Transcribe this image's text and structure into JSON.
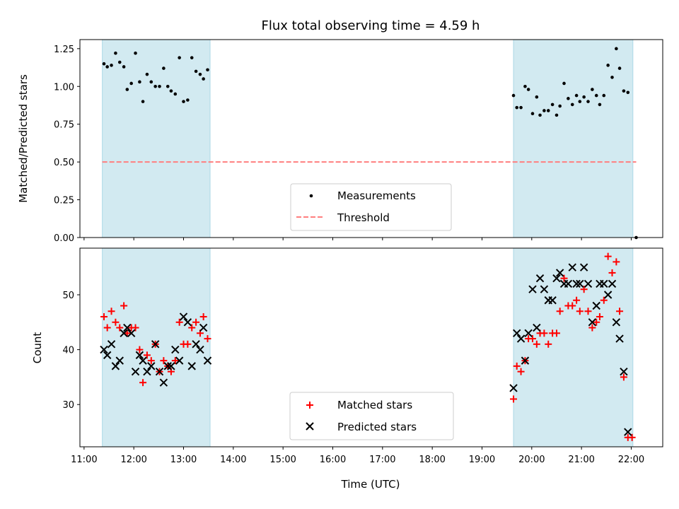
{
  "chart_data": {
    "type": "scatter",
    "title": "Flux total observing time = 4.59 h",
    "colors": {
      "measurements": "#000000",
      "threshold": "#ff7f7f",
      "matched": "#ff0000",
      "predicted": "#000000",
      "band": "#add8e6"
    },
    "xlabel": "Time (UTC)",
    "x_ticks": [
      "11:00",
      "12:00",
      "13:00",
      "14:00",
      "15:00",
      "16:00",
      "17:00",
      "18:00",
      "19:00",
      "20:00",
      "21:00",
      "22:00"
    ],
    "xlim": [
      "10:55",
      "22:38"
    ],
    "bands": [
      {
        "start": "11:22",
        "end": "13:32"
      },
      {
        "start": "19:38",
        "end": "22:02"
      }
    ],
    "panels": [
      {
        "ylabel": "Matched/Predicted stars",
        "ylim": [
          0,
          1.31
        ],
        "y_ticks": [
          "0.00",
          "0.25",
          "0.50",
          "0.75",
          "1.00",
          "1.25"
        ],
        "legend": {
          "position": "lower center",
          "entries": [
            "Measurements",
            "Threshold"
          ]
        },
        "threshold": {
          "y": 0.5,
          "x_start": "11:22",
          "x_end": "22:06"
        },
        "series": [
          {
            "name": "Measurements",
            "marker": "dot",
            "points": [
              [
                "11:24",
                1.15
              ],
              [
                "11:28",
                1.13
              ],
              [
                "11:33",
                1.14
              ],
              [
                "11:38",
                1.22
              ],
              [
                "11:43",
                1.16
              ],
              [
                "11:48",
                1.13
              ],
              [
                "11:52",
                0.98
              ],
              [
                "11:57",
                1.02
              ],
              [
                "12:02",
                1.22
              ],
              [
                "12:07",
                1.03
              ],
              [
                "12:11",
                0.9
              ],
              [
                "12:16",
                1.08
              ],
              [
                "12:21",
                1.03
              ],
              [
                "12:26",
                1.0
              ],
              [
                "12:31",
                1.0
              ],
              [
                "12:36",
                1.12
              ],
              [
                "12:41",
                1.0
              ],
              [
                "12:45",
                0.97
              ],
              [
                "12:50",
                0.95
              ],
              [
                "12:55",
                1.19
              ],
              [
                "13:00",
                0.9
              ],
              [
                "13:05",
                0.91
              ],
              [
                "13:10",
                1.19
              ],
              [
                "13:15",
                1.1
              ],
              [
                "13:20",
                1.08
              ],
              [
                "13:24",
                1.05
              ],
              [
                "13:29",
                1.11
              ],
              [
                "19:38",
                0.94
              ],
              [
                "19:42",
                0.86
              ],
              [
                "19:47",
                0.86
              ],
              [
                "19:52",
                1.0
              ],
              [
                "19:56",
                0.98
              ],
              [
                "20:01",
                0.82
              ],
              [
                "20:06",
                0.93
              ],
              [
                "20:10",
                0.81
              ],
              [
                "20:15",
                0.84
              ],
              [
                "20:20",
                0.84
              ],
              [
                "20:25",
                0.88
              ],
              [
                "20:30",
                0.81
              ],
              [
                "20:34",
                0.87
              ],
              [
                "20:39",
                1.02
              ],
              [
                "20:44",
                0.92
              ],
              [
                "20:49",
                0.88
              ],
              [
                "20:54",
                0.94
              ],
              [
                "20:58",
                0.9
              ],
              [
                "21:03",
                0.93
              ],
              [
                "21:08",
                0.9
              ],
              [
                "21:13",
                0.98
              ],
              [
                "21:18",
                0.94
              ],
              [
                "21:22",
                0.88
              ],
              [
                "21:27",
                0.94
              ],
              [
                "21:32",
                1.14
              ],
              [
                "21:37",
                1.06
              ],
              [
                "21:42",
                1.25
              ],
              [
                "21:46",
                1.12
              ],
              [
                "21:51",
                0.97
              ],
              [
                "21:56",
                0.96
              ],
              [
                "22:06",
                0.0
              ]
            ]
          }
        ]
      },
      {
        "ylabel": "Count",
        "ylim": [
          22.3,
          58.5
        ],
        "y_ticks": [
          "30",
          "40",
          "50"
        ],
        "legend": {
          "position": "lower center",
          "entries": [
            "Matched stars",
            "Predicted stars"
          ]
        },
        "series": [
          {
            "name": "Matched stars",
            "marker": "plus",
            "points": [
              [
                "11:24",
                46
              ],
              [
                "11:28",
                44
              ],
              [
                "11:33",
                47
              ],
              [
                "11:38",
                45
              ],
              [
                "11:43",
                44
              ],
              [
                "11:48",
                48
              ],
              [
                "11:52",
                43
              ],
              [
                "11:57",
                44
              ],
              [
                "12:02",
                44
              ],
              [
                "12:07",
                40
              ],
              [
                "12:11",
                34
              ],
              [
                "12:16",
                39
              ],
              [
                "12:21",
                38
              ],
              [
                "12:26",
                41
              ],
              [
                "12:31",
                36
              ],
              [
                "12:36",
                38
              ],
              [
                "12:41",
                37
              ],
              [
                "12:45",
                36
              ],
              [
                "12:50",
                38
              ],
              [
                "12:55",
                45
              ],
              [
                "13:00",
                41
              ],
              [
                "13:05",
                41
              ],
              [
                "13:10",
                44
              ],
              [
                "13:15",
                45
              ],
              [
                "13:20",
                43
              ],
              [
                "13:24",
                46
              ],
              [
                "13:29",
                42
              ],
              [
                "19:38",
                31
              ],
              [
                "19:42",
                37
              ],
              [
                "19:47",
                36
              ],
              [
                "19:52",
                38
              ],
              [
                "19:56",
                42
              ],
              [
                "20:01",
                42
              ],
              [
                "20:06",
                41
              ],
              [
                "20:10",
                43
              ],
              [
                "20:15",
                43
              ],
              [
                "20:20",
                41
              ],
              [
                "20:25",
                43
              ],
              [
                "20:30",
                43
              ],
              [
                "20:34",
                47
              ],
              [
                "20:39",
                53
              ],
              [
                "20:44",
                48
              ],
              [
                "20:49",
                48
              ],
              [
                "20:54",
                49
              ],
              [
                "20:58",
                47
              ],
              [
                "21:03",
                51
              ],
              [
                "21:08",
                47
              ],
              [
                "21:13",
                44
              ],
              [
                "21:18",
                45
              ],
              [
                "21:22",
                46
              ],
              [
                "21:27",
                49
              ],
              [
                "21:32",
                57
              ],
              [
                "21:37",
                54
              ],
              [
                "21:42",
                56
              ],
              [
                "21:46",
                47
              ],
              [
                "21:51",
                35
              ],
              [
                "21:56",
                24
              ],
              [
                "22:01",
                24
              ]
            ]
          },
          {
            "name": "Predicted stars",
            "marker": "x",
            "points": [
              [
                "11:24",
                40
              ],
              [
                "11:28",
                39
              ],
              [
                "11:33",
                41
              ],
              [
                "11:38",
                37
              ],
              [
                "11:43",
                38
              ],
              [
                "11:48",
                43
              ],
              [
                "11:52",
                44
              ],
              [
                "11:57",
                43
              ],
              [
                "12:02",
                36
              ],
              [
                "12:07",
                39
              ],
              [
                "12:11",
                38
              ],
              [
                "12:16",
                36
              ],
              [
                "12:21",
                37
              ],
              [
                "12:26",
                41
              ],
              [
                "12:31",
                36
              ],
              [
                "12:36",
                34
              ],
              [
                "12:41",
                37
              ],
              [
                "12:45",
                37
              ],
              [
                "12:50",
                40
              ],
              [
                "12:55",
                38
              ],
              [
                "13:00",
                46
              ],
              [
                "13:05",
                45
              ],
              [
                "13:10",
                37
              ],
              [
                "13:15",
                41
              ],
              [
                "13:20",
                40
              ],
              [
                "13:24",
                44
              ],
              [
                "13:29",
                38
              ],
              [
                "19:38",
                33
              ],
              [
                "19:42",
                43
              ],
              [
                "19:47",
                42
              ],
              [
                "19:52",
                38
              ],
              [
                "19:56",
                43
              ],
              [
                "20:01",
                51
              ],
              [
                "20:06",
                44
              ],
              [
                "20:10",
                53
              ],
              [
                "20:15",
                51
              ],
              [
                "20:20",
                49
              ],
              [
                "20:25",
                49
              ],
              [
                "20:30",
                53
              ],
              [
                "20:34",
                54
              ],
              [
                "20:39",
                52
              ],
              [
                "20:44",
                52
              ],
              [
                "20:49",
                55
              ],
              [
                "20:54",
                52
              ],
              [
                "20:58",
                52
              ],
              [
                "21:03",
                55
              ],
              [
                "21:08",
                52
              ],
              [
                "21:13",
                45
              ],
              [
                "21:18",
                48
              ],
              [
                "21:22",
                52
              ],
              [
                "21:27",
                52
              ],
              [
                "21:32",
                50
              ],
              [
                "21:37",
                52
              ],
              [
                "21:42",
                45
              ],
              [
                "21:46",
                42
              ],
              [
                "21:51",
                36
              ],
              [
                "21:56",
                25
              ]
            ]
          }
        ]
      }
    ]
  }
}
